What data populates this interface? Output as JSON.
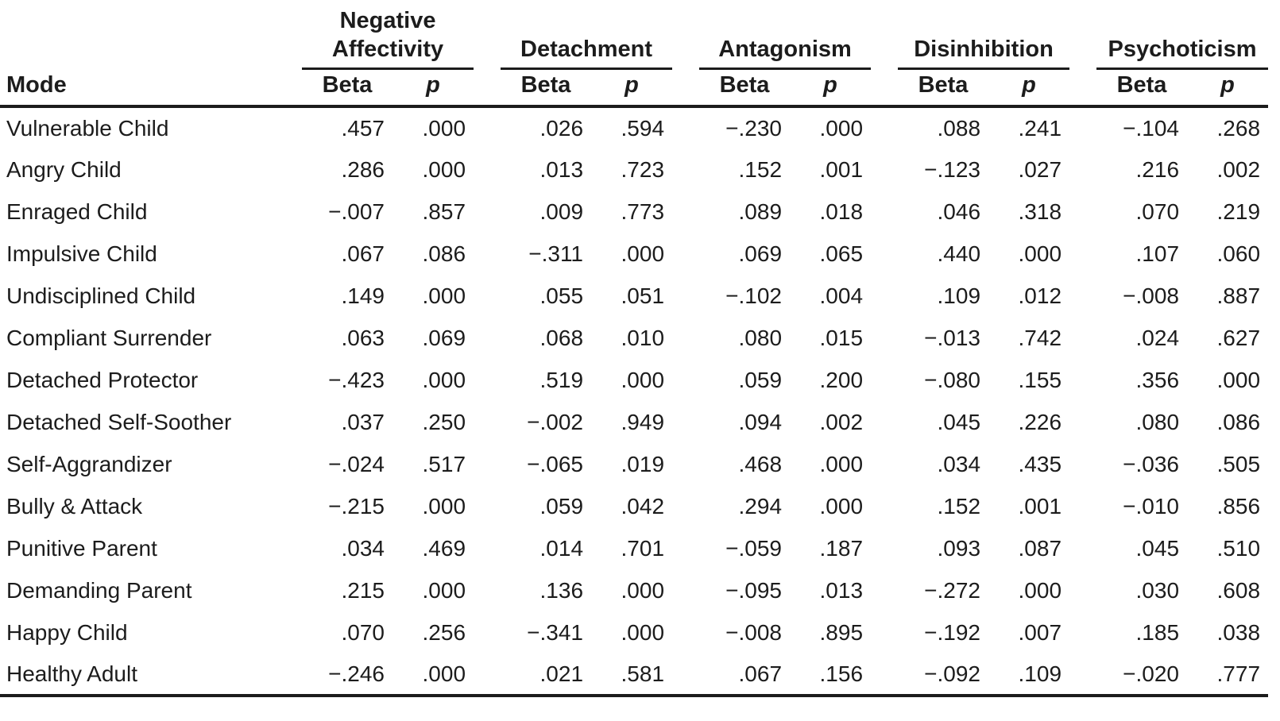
{
  "table": {
    "mode_header": "Mode",
    "groups": [
      {
        "label": "Negative Affectivity",
        "beta_label": "Beta",
        "p_label": "p"
      },
      {
        "label": "Detachment",
        "beta_label": "Beta",
        "p_label": "p"
      },
      {
        "label": "Antagonism",
        "beta_label": "Beta",
        "p_label": "p"
      },
      {
        "label": "Disinhibition",
        "beta_label": "Beta",
        "p_label": "p"
      },
      {
        "label": "Psychoticism",
        "beta_label": "Beta",
        "p_label": "p"
      }
    ],
    "rows": [
      {
        "mode": "Vulnerable Child",
        "values": [
          ".457",
          ".000",
          ".026",
          ".594",
          "−.230",
          ".000",
          ".088",
          ".241",
          "−.104",
          ".268"
        ]
      },
      {
        "mode": "Angry Child",
        "values": [
          ".286",
          ".000",
          ".013",
          ".723",
          ".152",
          ".001",
          "−.123",
          ".027",
          ".216",
          ".002"
        ]
      },
      {
        "mode": "Enraged Child",
        "values": [
          "−.007",
          ".857",
          ".009",
          ".773",
          ".089",
          ".018",
          ".046",
          ".318",
          ".070",
          ".219"
        ]
      },
      {
        "mode": "Impulsive Child",
        "values": [
          ".067",
          ".086",
          "−.311",
          ".000",
          ".069",
          ".065",
          ".440",
          ".000",
          ".107",
          ".060"
        ]
      },
      {
        "mode": "Undisciplined Child",
        "values": [
          ".149",
          ".000",
          ".055",
          ".051",
          "−.102",
          ".004",
          ".109",
          ".012",
          "−.008",
          ".887"
        ]
      },
      {
        "mode": "Compliant Surrender",
        "values": [
          ".063",
          ".069",
          ".068",
          ".010",
          ".080",
          ".015",
          "−.013",
          ".742",
          ".024",
          ".627"
        ]
      },
      {
        "mode": "Detached Protector",
        "values": [
          "−.423",
          ".000",
          ".519",
          ".000",
          ".059",
          ".200",
          "−.080",
          ".155",
          ".356",
          ".000"
        ]
      },
      {
        "mode": "Detached Self-Soother",
        "values": [
          ".037",
          ".250",
          "−.002",
          ".949",
          ".094",
          ".002",
          ".045",
          ".226",
          ".080",
          ".086"
        ]
      },
      {
        "mode": "Self-Aggrandizer",
        "values": [
          "−.024",
          ".517",
          "−.065",
          ".019",
          ".468",
          ".000",
          ".034",
          ".435",
          "−.036",
          ".505"
        ]
      },
      {
        "mode": "Bully & Attack",
        "values": [
          "−.215",
          ".000",
          ".059",
          ".042",
          ".294",
          ".000",
          ".152",
          ".001",
          "−.010",
          ".856"
        ]
      },
      {
        "mode": "Punitive Parent",
        "values": [
          ".034",
          ".469",
          ".014",
          ".701",
          "−.059",
          ".187",
          ".093",
          ".087",
          ".045",
          ".510"
        ]
      },
      {
        "mode": "Demanding Parent",
        "values": [
          ".215",
          ".000",
          ".136",
          ".000",
          "−.095",
          ".013",
          "−.272",
          ".000",
          ".030",
          ".608"
        ]
      },
      {
        "mode": "Happy Child",
        "values": [
          ".070",
          ".256",
          "−.341",
          ".000",
          "−.008",
          ".895",
          "−.192",
          ".007",
          ".185",
          ".038"
        ]
      },
      {
        "mode": "Healthy Adult",
        "values": [
          "−.246",
          ".000",
          ".021",
          ".581",
          ".067",
          ".156",
          "−.092",
          ".109",
          "−.020",
          ".777"
        ]
      }
    ]
  },
  "colors": {
    "text": "#1c1c1c",
    "rule": "#1c1c1c",
    "background": "#ffffff"
  }
}
